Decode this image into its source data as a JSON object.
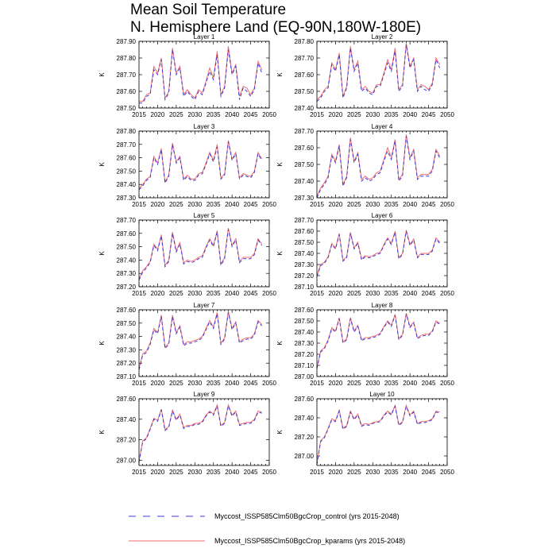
{
  "header": {
    "title_line1": "Mean Soil Temperature",
    "title_line2": "N. Hemisphere Land (EQ-90N,180W-180E)"
  },
  "legend": [
    {
      "label": "Myccost_ISSP585Clm50BgcCrop_control (yrs 2015-2048)",
      "color": "#3b3bd9",
      "style": "dashed"
    },
    {
      "label": "Myccost_ISSP585Clm50BgcCrop_kparams (yrs 2015-2048)",
      "color": "#f26d6d",
      "style": "solid"
    }
  ],
  "chart_data": {
    "type": "line",
    "years": [
      2015,
      2016,
      2017,
      2018,
      2019,
      2020,
      2021,
      2022,
      2023,
      2024,
      2025,
      2026,
      2027,
      2028,
      2029,
      2030,
      2031,
      2032,
      2033,
      2034,
      2035,
      2036,
      2037,
      2038,
      2039,
      2040,
      2041,
      2042,
      2043,
      2044,
      2045,
      2046,
      2047,
      2048
    ],
    "xlim": [
      2015,
      2050
    ],
    "xticks": [
      2015,
      2020,
      2025,
      2030,
      2035,
      2040,
      2045,
      2050
    ],
    "ylabel": "K",
    "panels": [
      {
        "title": "Layer 1",
        "ylim": [
          287.5,
          287.9
        ],
        "yticks": [
          "287.50",
          "287.60",
          "287.70",
          "287.80",
          "287.90"
        ],
        "control": [
          287.53,
          287.53,
          287.57,
          287.58,
          287.73,
          287.7,
          287.79,
          287.55,
          287.59,
          287.85,
          287.7,
          287.74,
          287.57,
          287.6,
          287.57,
          287.55,
          287.6,
          287.58,
          287.65,
          287.72,
          287.67,
          287.82,
          287.57,
          287.62,
          287.85,
          287.7,
          287.75,
          287.55,
          287.62,
          287.6,
          287.57,
          287.61,
          287.77,
          287.71
        ],
        "kparams": [
          287.54,
          287.54,
          287.58,
          287.59,
          287.75,
          287.71,
          287.8,
          287.56,
          287.6,
          287.86,
          287.71,
          287.75,
          287.58,
          287.61,
          287.58,
          287.56,
          287.61,
          287.59,
          287.66,
          287.74,
          287.68,
          287.84,
          287.58,
          287.63,
          287.87,
          287.71,
          287.76,
          287.57,
          287.63,
          287.62,
          287.58,
          287.62,
          287.78,
          287.73
        ]
      },
      {
        "title": "Layer 2",
        "ylim": [
          287.4,
          287.8
        ],
        "yticks": [
          "287.40",
          "287.50",
          "287.60",
          "287.70",
          "287.80"
        ],
        "control": [
          287.44,
          287.46,
          287.5,
          287.52,
          287.66,
          287.62,
          287.72,
          287.46,
          287.52,
          287.76,
          287.62,
          287.67,
          287.5,
          287.52,
          287.49,
          287.48,
          287.53,
          287.53,
          287.6,
          287.67,
          287.62,
          287.74,
          287.5,
          287.53,
          287.78,
          287.64,
          287.69,
          287.5,
          287.53,
          287.51,
          287.5,
          287.54,
          287.69,
          287.64
        ],
        "kparams": [
          287.45,
          287.47,
          287.51,
          287.53,
          287.67,
          287.63,
          287.73,
          287.47,
          287.53,
          287.77,
          287.63,
          287.68,
          287.51,
          287.53,
          287.5,
          287.49,
          287.54,
          287.54,
          287.61,
          287.69,
          287.63,
          287.76,
          287.51,
          287.54,
          287.79,
          287.65,
          287.7,
          287.51,
          287.54,
          287.53,
          287.51,
          287.55,
          287.7,
          287.66
        ]
      },
      {
        "title": "Layer 3",
        "ylim": [
          287.3,
          287.8
        ],
        "yticks": [
          "287.30",
          "287.40",
          "287.50",
          "287.60",
          "287.70",
          "287.80"
        ],
        "control": [
          287.36,
          287.39,
          287.43,
          287.45,
          287.6,
          287.55,
          287.66,
          287.41,
          287.46,
          287.7,
          287.56,
          287.6,
          287.43,
          287.46,
          287.43,
          287.43,
          287.47,
          287.48,
          287.55,
          287.63,
          287.57,
          287.68,
          287.44,
          287.47,
          287.72,
          287.58,
          287.63,
          287.44,
          287.47,
          287.46,
          287.45,
          287.49,
          287.63,
          287.58
        ],
        "kparams": [
          287.37,
          287.4,
          287.44,
          287.46,
          287.61,
          287.56,
          287.67,
          287.42,
          287.47,
          287.71,
          287.57,
          287.61,
          287.44,
          287.47,
          287.44,
          287.44,
          287.48,
          287.49,
          287.56,
          287.64,
          287.58,
          287.7,
          287.45,
          287.48,
          287.73,
          287.59,
          287.64,
          287.45,
          287.48,
          287.47,
          287.46,
          287.5,
          287.64,
          287.59
        ]
      },
      {
        "title": "Layer 4",
        "ylim": [
          287.3,
          287.7
        ],
        "yticks": [
          "287.30",
          "287.40",
          "287.50",
          "287.60",
          "287.70"
        ],
        "control": [
          287.3,
          287.35,
          287.38,
          287.42,
          287.55,
          287.51,
          287.61,
          287.37,
          287.42,
          287.65,
          287.51,
          287.56,
          287.4,
          287.42,
          287.4,
          287.41,
          287.44,
          287.45,
          287.52,
          287.58,
          287.53,
          287.64,
          287.4,
          287.43,
          287.67,
          287.53,
          287.58,
          287.41,
          287.43,
          287.43,
          287.43,
          287.46,
          287.58,
          287.54
        ],
        "kparams": [
          287.31,
          287.36,
          287.39,
          287.43,
          287.56,
          287.52,
          287.62,
          287.38,
          287.43,
          287.66,
          287.52,
          287.57,
          287.41,
          287.43,
          287.41,
          287.42,
          287.45,
          287.46,
          287.53,
          287.6,
          287.54,
          287.65,
          287.41,
          287.44,
          287.68,
          287.54,
          287.59,
          287.42,
          287.44,
          287.44,
          287.44,
          287.47,
          287.59,
          287.55
        ]
      },
      {
        "title": "Layer 5",
        "ylim": [
          287.2,
          287.7
        ],
        "yticks": [
          "287.20",
          "287.30",
          "287.40",
          "287.50",
          "287.60",
          "287.70"
        ],
        "control": [
          287.25,
          287.31,
          287.34,
          287.38,
          287.51,
          287.47,
          287.58,
          287.35,
          287.39,
          287.6,
          287.46,
          287.52,
          287.37,
          287.39,
          287.38,
          287.39,
          287.41,
          287.42,
          287.49,
          287.55,
          287.5,
          287.61,
          287.36,
          287.41,
          287.63,
          287.5,
          287.55,
          287.38,
          287.41,
          287.41,
          287.41,
          287.44,
          287.55,
          287.51
        ],
        "kparams": [
          287.26,
          287.32,
          287.35,
          287.39,
          287.52,
          287.48,
          287.59,
          287.36,
          287.4,
          287.61,
          287.47,
          287.53,
          287.38,
          287.4,
          287.39,
          287.4,
          287.42,
          287.43,
          287.5,
          287.56,
          287.51,
          287.62,
          287.37,
          287.42,
          287.64,
          287.51,
          287.56,
          287.39,
          287.42,
          287.42,
          287.42,
          287.45,
          287.56,
          287.52
        ]
      },
      {
        "title": "Layer 6",
        "ylim": [
          287.1,
          287.7
        ],
        "yticks": [
          "287.10",
          "287.20",
          "287.30",
          "287.40",
          "287.50",
          "287.60",
          "287.70"
        ],
        "control": [
          287.19,
          287.29,
          287.31,
          287.36,
          287.48,
          287.44,
          287.57,
          287.33,
          287.36,
          287.58,
          287.44,
          287.49,
          287.34,
          287.37,
          287.36,
          287.37,
          287.39,
          287.4,
          287.47,
          287.53,
          287.48,
          287.59,
          287.35,
          287.39,
          287.6,
          287.47,
          287.52,
          287.36,
          287.39,
          287.39,
          287.39,
          287.42,
          287.53,
          287.49
        ],
        "kparams": [
          287.2,
          287.3,
          287.32,
          287.37,
          287.49,
          287.45,
          287.58,
          287.34,
          287.37,
          287.59,
          287.45,
          287.5,
          287.35,
          287.38,
          287.37,
          287.38,
          287.4,
          287.41,
          287.48,
          287.54,
          287.49,
          287.6,
          287.36,
          287.4,
          287.61,
          287.48,
          287.53,
          287.37,
          287.4,
          287.4,
          287.4,
          287.43,
          287.54,
          287.5
        ]
      },
      {
        "title": "Layer 7",
        "ylim": [
          287.1,
          287.6
        ],
        "yticks": [
          "287.10",
          "287.20",
          "287.30",
          "287.40",
          "287.50",
          "287.60"
        ],
        "control": [
          287.15,
          287.26,
          287.28,
          287.34,
          287.45,
          287.42,
          287.55,
          287.31,
          287.34,
          287.55,
          287.42,
          287.47,
          287.33,
          287.35,
          287.35,
          287.36,
          287.37,
          287.39,
          287.45,
          287.51,
          287.46,
          287.57,
          287.34,
          287.38,
          287.58,
          287.45,
          287.5,
          287.35,
          287.37,
          287.38,
          287.38,
          287.41,
          287.51,
          287.48
        ],
        "kparams": [
          287.16,
          287.27,
          287.29,
          287.35,
          287.46,
          287.43,
          287.56,
          287.32,
          287.35,
          287.56,
          287.43,
          287.48,
          287.34,
          287.36,
          287.36,
          287.37,
          287.38,
          287.4,
          287.46,
          287.52,
          287.47,
          287.58,
          287.35,
          287.39,
          287.59,
          287.46,
          287.51,
          287.36,
          287.38,
          287.39,
          287.39,
          287.42,
          287.52,
          287.49
        ]
      },
      {
        "title": "Layer 8",
        "ylim": [
          287.0,
          287.6
        ],
        "yticks": [
          "287.00",
          "287.10",
          "287.20",
          "287.30",
          "287.40",
          "287.50",
          "287.60"
        ],
        "control": [
          287.07,
          287.22,
          287.25,
          287.32,
          287.43,
          287.4,
          287.52,
          287.3,
          287.33,
          287.52,
          287.4,
          287.45,
          287.32,
          287.34,
          287.34,
          287.35,
          287.36,
          287.38,
          287.44,
          287.49,
          287.45,
          287.55,
          287.33,
          287.37,
          287.56,
          287.44,
          287.48,
          287.34,
          287.36,
          287.37,
          287.37,
          287.4,
          287.49,
          287.47
        ],
        "kparams": [
          287.08,
          287.23,
          287.26,
          287.33,
          287.44,
          287.41,
          287.53,
          287.31,
          287.34,
          287.53,
          287.41,
          287.46,
          287.33,
          287.35,
          287.35,
          287.36,
          287.37,
          287.39,
          287.45,
          287.5,
          287.46,
          287.56,
          287.34,
          287.38,
          287.57,
          287.45,
          287.49,
          287.35,
          287.37,
          287.38,
          287.38,
          287.41,
          287.5,
          287.48
        ]
      },
      {
        "title": "Layer 9",
        "ylim": [
          286.95,
          287.6
        ],
        "yticks": [
          "287.00",
          "287.20",
          "287.40",
          "287.60"
        ],
        "control": [
          286.98,
          287.18,
          287.21,
          287.3,
          287.4,
          287.38,
          287.49,
          287.29,
          287.32,
          287.48,
          287.39,
          287.44,
          287.31,
          287.33,
          287.33,
          287.35,
          287.35,
          287.37,
          287.43,
          287.47,
          287.44,
          287.53,
          287.33,
          287.36,
          287.53,
          287.43,
          287.47,
          287.34,
          287.35,
          287.36,
          287.36,
          287.39,
          287.47,
          287.46
        ],
        "kparams": [
          286.99,
          287.19,
          287.22,
          287.31,
          287.41,
          287.39,
          287.5,
          287.3,
          287.33,
          287.49,
          287.4,
          287.45,
          287.32,
          287.34,
          287.34,
          287.36,
          287.36,
          287.38,
          287.44,
          287.48,
          287.45,
          287.54,
          287.34,
          287.37,
          287.54,
          287.44,
          287.48,
          287.35,
          287.36,
          287.37,
          287.37,
          287.4,
          287.48,
          287.47
        ]
      },
      {
        "title": "Layer 10",
        "ylim": [
          286.9,
          287.6
        ],
        "yticks": [
          "287.00",
          "287.20",
          "287.40",
          "287.60"
        ],
        "control": [
          286.91,
          287.15,
          287.19,
          287.28,
          287.38,
          287.36,
          287.47,
          287.28,
          287.31,
          287.46,
          287.38,
          287.43,
          287.31,
          287.33,
          287.32,
          287.34,
          287.35,
          287.36,
          287.42,
          287.46,
          287.43,
          287.52,
          287.32,
          287.35,
          287.52,
          287.42,
          287.46,
          287.33,
          287.35,
          287.35,
          287.36,
          287.38,
          287.46,
          287.45
        ],
        "kparams": [
          286.92,
          287.16,
          287.2,
          287.29,
          287.39,
          287.37,
          287.48,
          287.29,
          287.32,
          287.47,
          287.39,
          287.44,
          287.32,
          287.34,
          287.33,
          287.35,
          287.36,
          287.37,
          287.43,
          287.47,
          287.44,
          287.53,
          287.33,
          287.36,
          287.53,
          287.43,
          287.47,
          287.34,
          287.36,
          287.36,
          287.37,
          287.39,
          287.47,
          287.46
        ]
      }
    ]
  }
}
